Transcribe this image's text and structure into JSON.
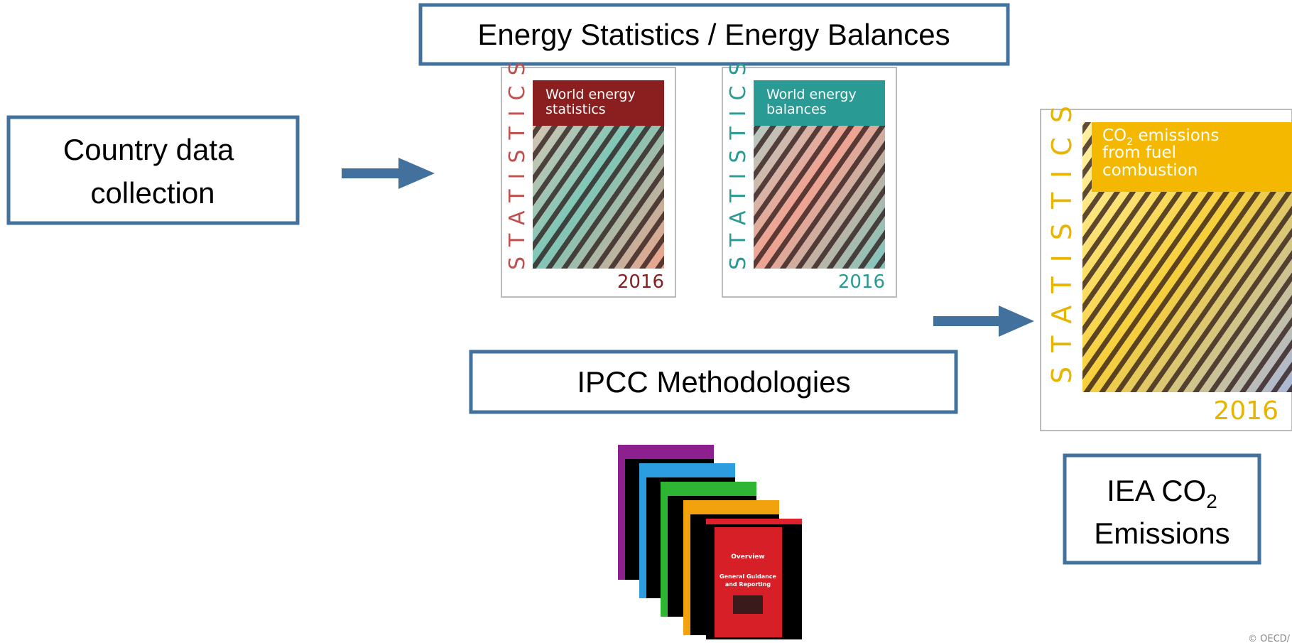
{
  "boxes": {
    "energy": "Energy Statistics / Energy Balances",
    "country": [
      "Country data",
      "collection"
    ],
    "ipcc": "IPCC Methodologies",
    "iea": {
      "line1": "IEA CO",
      "sub": "2",
      "line2": "Emissions"
    }
  },
  "covers": [
    {
      "title": [
        "World energy",
        "statistics"
      ],
      "side": "STATISTICS",
      "year": "2016"
    },
    {
      "title": [
        "World energy",
        "balances"
      ],
      "side": "STATISTICS",
      "year": "2016"
    },
    {
      "title": [
        "CO",
        "2",
        " emissions",
        "from fuel",
        "combustion"
      ],
      "side": "STATISTICS",
      "year": "2016"
    }
  ],
  "ipcc_book": {
    "title": "Overview",
    "subtitle": [
      "General Guidance",
      "and Reporting"
    ]
  },
  "footer": "© OECD/"
}
